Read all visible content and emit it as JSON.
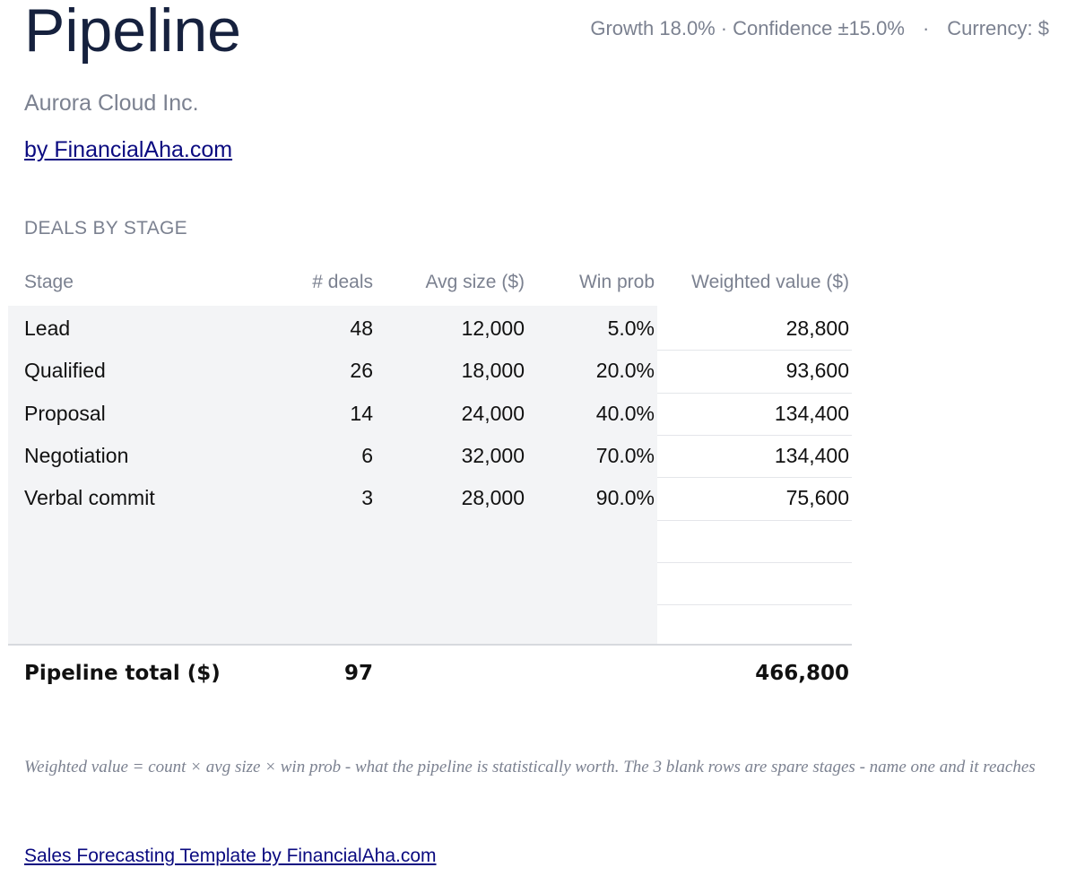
{
  "header": {
    "title": "Pipeline",
    "growth": "Growth 18.0%",
    "confidence": "Confidence ±15.0%",
    "currency": "Currency: $",
    "separator": "·"
  },
  "company": "Aurora Cloud Inc.",
  "byline": "by FinancialAha.com",
  "section_title": "DEALS BY STAGE",
  "table": {
    "columns": {
      "stage": "Stage",
      "deals": "# deals",
      "avg_size": "Avg size ($)",
      "win_prob": "Win prob",
      "weighted_value": "Weighted value ($)"
    },
    "rows": [
      {
        "stage": "Lead",
        "deals": "48",
        "avg_size": "12,000",
        "win_prob": "5.0%",
        "weighted_value": "28,800"
      },
      {
        "stage": "Qualified",
        "deals": "26",
        "avg_size": "18,000",
        "win_prob": "20.0%",
        "weighted_value": "93,600"
      },
      {
        "stage": "Proposal",
        "deals": "14",
        "avg_size": "24,000",
        "win_prob": "40.0%",
        "weighted_value": "134,400"
      },
      {
        "stage": "Negotiation",
        "deals": "6",
        "avg_size": "32,000",
        "win_prob": "70.0%",
        "weighted_value": "134,400"
      },
      {
        "stage": "Verbal commit",
        "deals": "3",
        "avg_size": "28,000",
        "win_prob": "90.0%",
        "weighted_value": "75,600"
      },
      {
        "stage": "",
        "deals": "",
        "avg_size": "",
        "win_prob": "",
        "weighted_value": ""
      },
      {
        "stage": "",
        "deals": "",
        "avg_size": "",
        "win_prob": "",
        "weighted_value": ""
      },
      {
        "stage": "",
        "deals": "",
        "avg_size": "",
        "win_prob": "",
        "weighted_value": ""
      }
    ],
    "total": {
      "label": "Pipeline total ($)",
      "deals": "97",
      "weighted_value": "466,800"
    }
  },
  "note": "Weighted value = count × avg size × win prob - what the pipeline is statistically worth. The 3 blank rows are spare stages - name one and it reaches",
  "footer_link": "Sales Forecasting Template by FinancialAha.com"
}
